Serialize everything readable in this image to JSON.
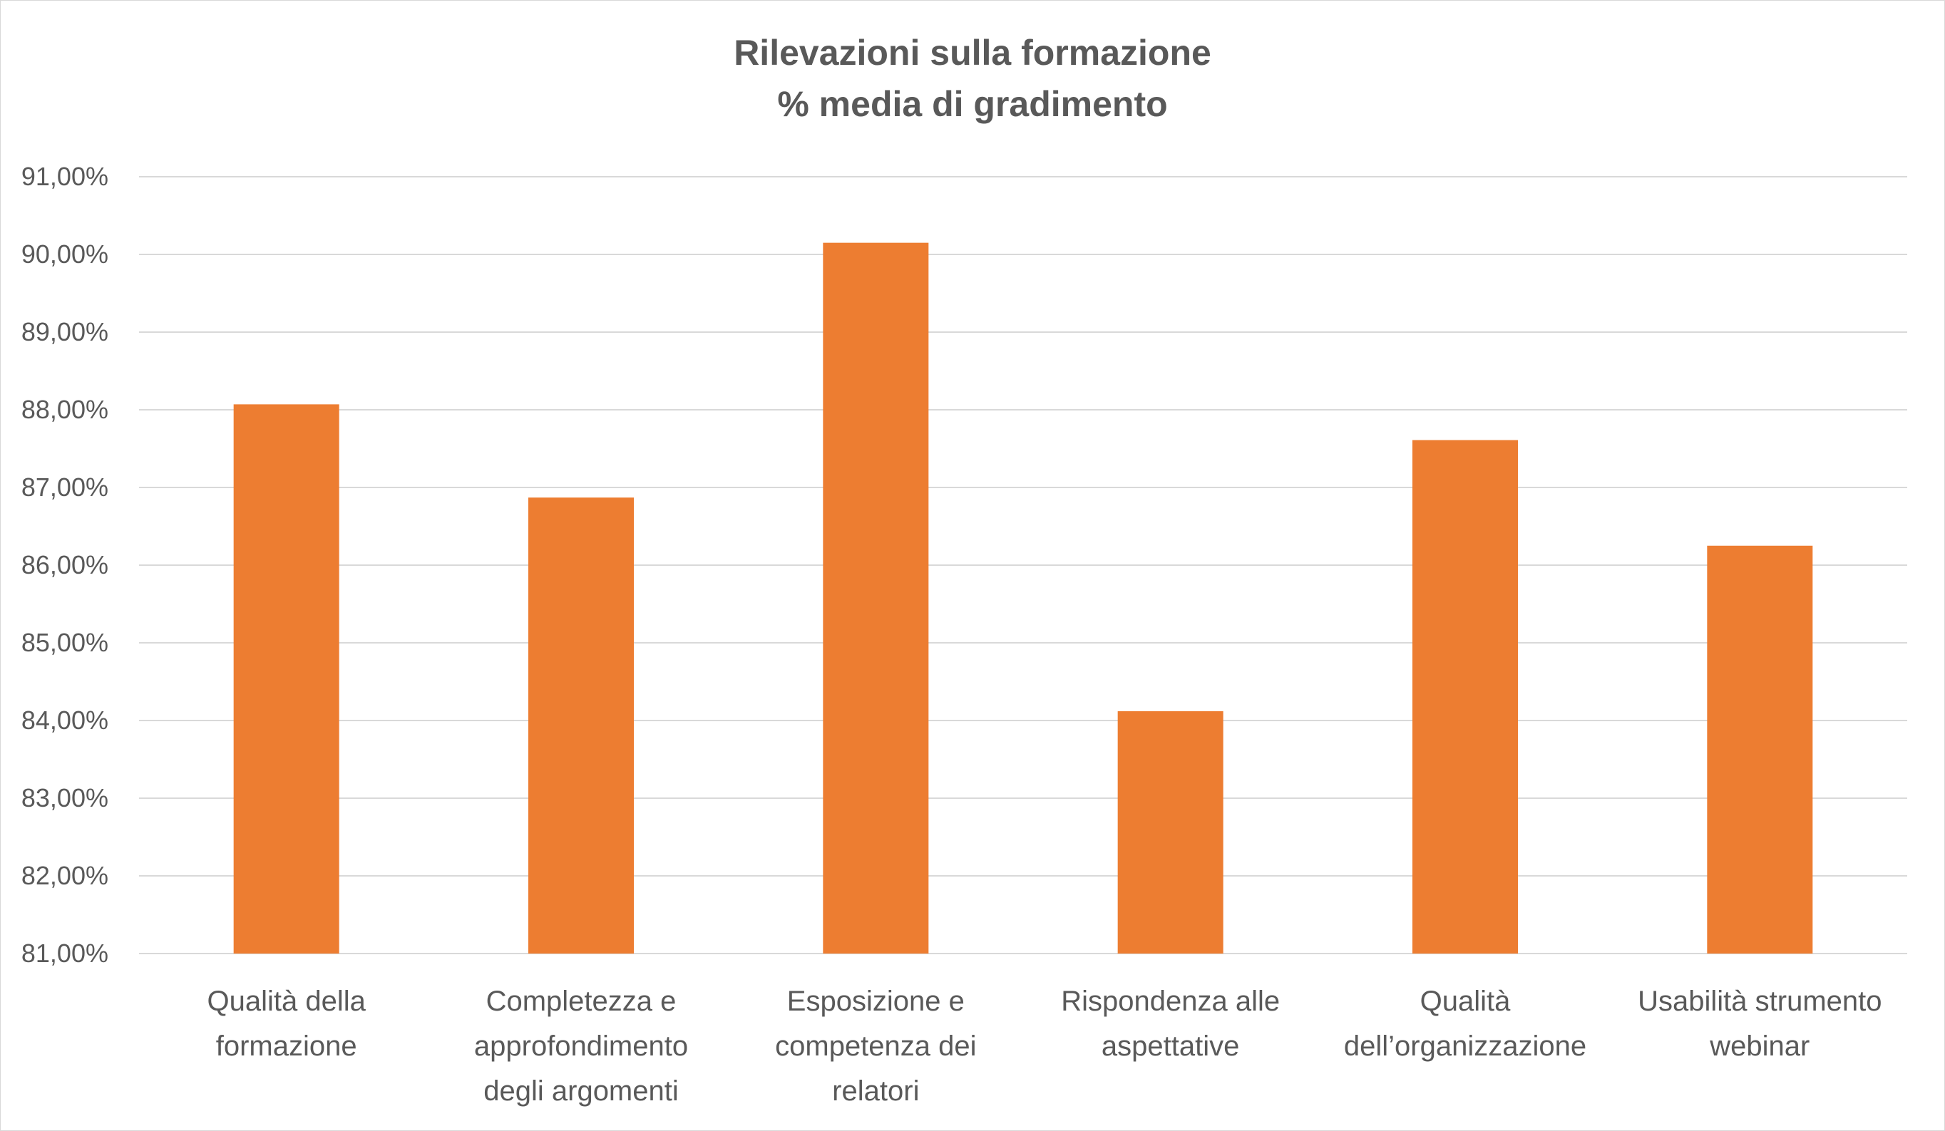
{
  "chart_data": {
    "type": "bar",
    "title_lines": [
      "Rilevazioni sulla formazione",
      "% media di gradimento"
    ],
    "categories": [
      [
        "Qualità della",
        "formazione"
      ],
      [
        "Completezza e",
        "approfondimento",
        "degli argomenti"
      ],
      [
        "Esposizione e",
        "competenza dei",
        "relatori"
      ],
      [
        "Rispondenza alle",
        "aspettative"
      ],
      [
        "Qualità",
        "dell’organizzazione"
      ],
      [
        "Usabilità strumento",
        "webinar"
      ]
    ],
    "values": [
      88.07,
      86.87,
      90.15,
      84.12,
      87.61,
      86.25
    ],
    "ylim": [
      81,
      91
    ],
    "yticks": [
      81,
      82,
      83,
      84,
      85,
      86,
      87,
      88,
      89,
      90,
      91
    ],
    "ytick_labels": [
      "81,00%",
      "82,00%",
      "83,00%",
      "84,00%",
      "85,00%",
      "86,00%",
      "87,00%",
      "88,00%",
      "89,00%",
      "90,00%",
      "91,00%"
    ],
    "bar_color": "#ED7D31",
    "gridlines": true,
    "legend": "none"
  }
}
